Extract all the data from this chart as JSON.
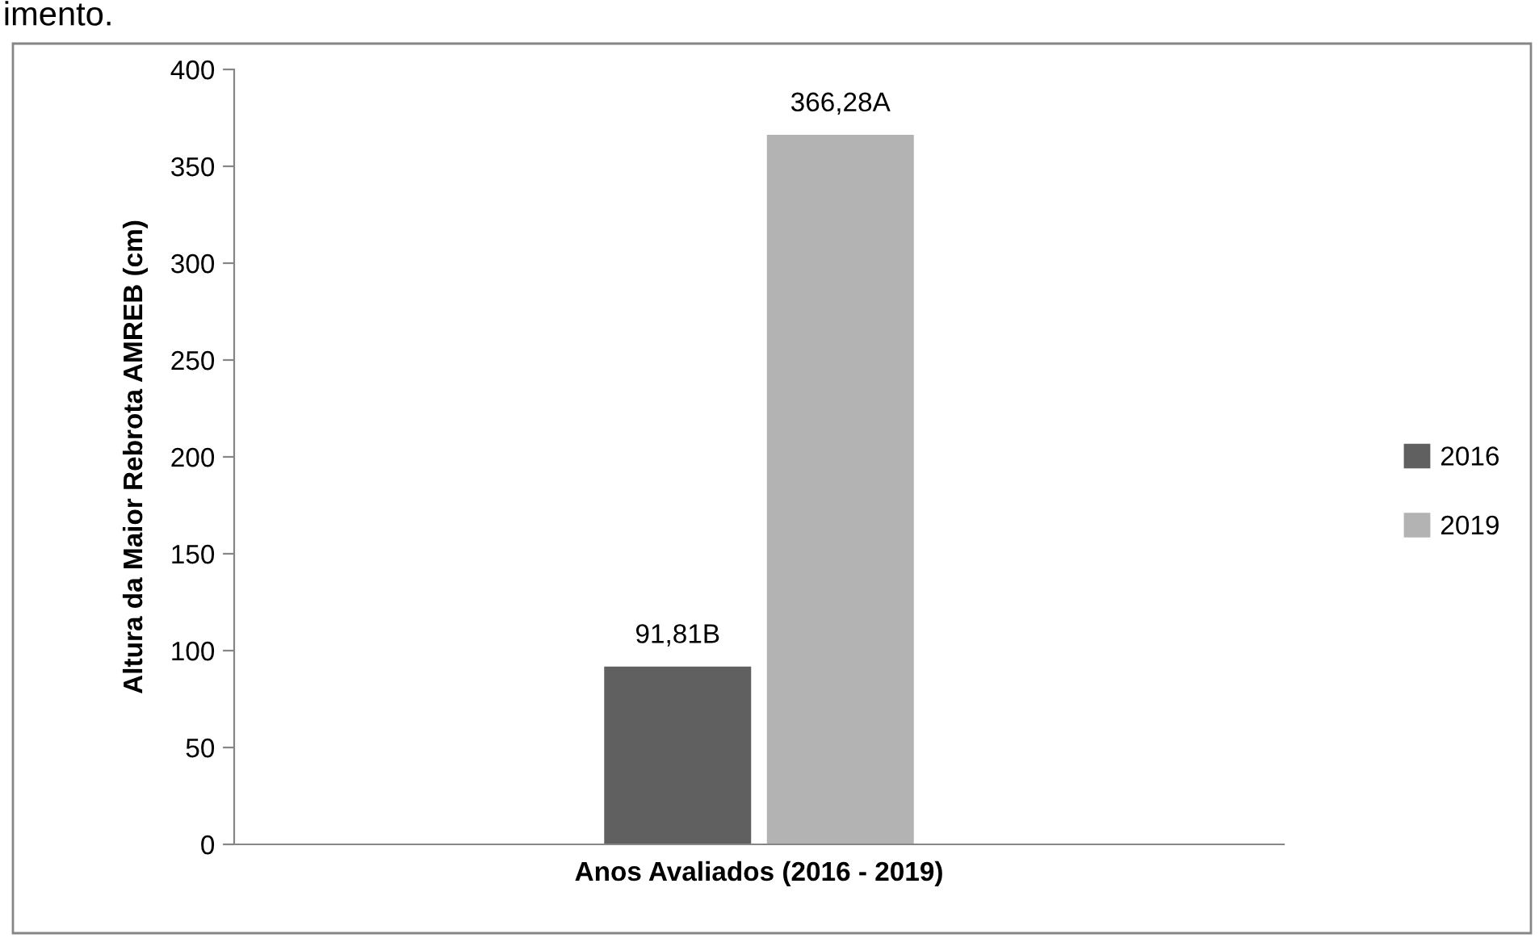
{
  "chart_data": {
    "type": "bar",
    "categories": [
      null
    ],
    "series": [
      {
        "name": "2016",
        "color": "#606060",
        "values": [
          91.81
        ],
        "value_labels": [
          "91,81B"
        ]
      },
      {
        "name": "2019",
        "color": "#b3b3b3",
        "values": [
          366.28
        ],
        "value_labels": [
          "366,28A"
        ]
      }
    ],
    "xlabel": "Anos Avaliados (2016 - 2019)",
    "ylabel": "Altura da Maior Rebrota AMREB (cm)",
    "ylim": [
      0,
      400
    ],
    "yticks": [
      0,
      50,
      100,
      150,
      200,
      250,
      300,
      350,
      400
    ],
    "grid": false,
    "legend": "right",
    "annotations": [
      "imento."
    ]
  }
}
